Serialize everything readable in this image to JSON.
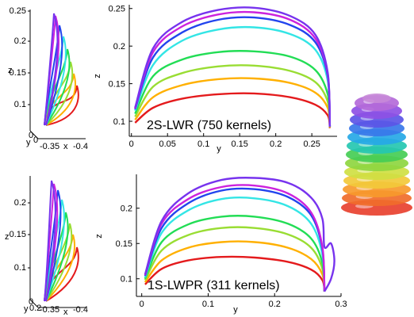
{
  "colors": [
    "#e41a1c",
    "#ffb000",
    "#99dd33",
    "#22dd55",
    "#33e5e5",
    "#2244ee",
    "#cc22dd",
    "#7733ee"
  ],
  "chart_data": [
    {
      "id": "top-main",
      "type": "line",
      "annotation": "2S-LWR (750 kernels)",
      "xlabel": "y",
      "ylabel": "z",
      "xlim": [
        -0.003,
        0.285
      ],
      "ylim": [
        0.08,
        0.255
      ],
      "xticks": [
        "0",
        "0.05",
        "0.1",
        "0.15",
        "0.2",
        "0.25"
      ],
      "xtick_values": [
        0,
        0.05,
        0.1,
        0.15,
        0.2,
        0.25
      ],
      "yticks": [
        "0.1",
        "0.15",
        "0.2",
        "0.25"
      ],
      "ytick_values": [
        0.1,
        0.15,
        0.2,
        0.25
      ],
      "series": [
        {
          "x": [
            0.005,
            0.03,
            0.07,
            0.12,
            0.17,
            0.22,
            0.255,
            0.272,
            0.275
          ],
          "y": [
            0.098,
            0.118,
            0.13,
            0.136,
            0.137,
            0.132,
            0.122,
            0.108,
            0.091
          ]
        },
        {
          "x": [
            0.005,
            0.03,
            0.07,
            0.12,
            0.17,
            0.22,
            0.255,
            0.272,
            0.275
          ],
          "y": [
            0.102,
            0.132,
            0.148,
            0.156,
            0.157,
            0.151,
            0.138,
            0.118,
            0.092
          ]
        },
        {
          "x": [
            0.005,
            0.03,
            0.07,
            0.12,
            0.17,
            0.22,
            0.255,
            0.272,
            0.275
          ],
          "y": [
            0.106,
            0.146,
            0.164,
            0.173,
            0.174,
            0.167,
            0.152,
            0.126,
            0.092
          ]
        },
        {
          "x": [
            0.005,
            0.03,
            0.07,
            0.12,
            0.17,
            0.22,
            0.255,
            0.272,
            0.275
          ],
          "y": [
            0.11,
            0.16,
            0.182,
            0.192,
            0.193,
            0.186,
            0.168,
            0.136,
            0.093
          ]
        },
        {
          "x": [
            0.005,
            0.03,
            0.07,
            0.12,
            0.17,
            0.22,
            0.255,
            0.272,
            0.275
          ],
          "y": [
            0.114,
            0.175,
            0.207,
            0.222,
            0.225,
            0.216,
            0.195,
            0.154,
            0.093
          ]
        },
        {
          "x": [
            0.005,
            0.03,
            0.07,
            0.12,
            0.17,
            0.22,
            0.255,
            0.272,
            0.275
          ],
          "y": [
            0.116,
            0.185,
            0.218,
            0.235,
            0.238,
            0.228,
            0.205,
            0.16,
            0.093
          ]
        },
        {
          "x": [
            0.005,
            0.03,
            0.07,
            0.12,
            0.17,
            0.22,
            0.255,
            0.272,
            0.275
          ],
          "y": [
            0.117,
            0.192,
            0.226,
            0.242,
            0.245,
            0.235,
            0.21,
            0.163,
            0.093
          ]
        },
        {
          "x": [
            0.005,
            0.03,
            0.07,
            0.12,
            0.17,
            0.22,
            0.255,
            0.272,
            0.275
          ],
          "y": [
            0.118,
            0.197,
            0.232,
            0.248,
            0.251,
            0.24,
            0.215,
            0.165,
            0.093
          ]
        }
      ]
    },
    {
      "id": "bottom-main",
      "type": "line",
      "annotation": "1S-LWPR (311 kernels)",
      "xlabel": "y",
      "ylabel": "z",
      "xlim": [
        -0.008,
        0.3
      ],
      "ylim": [
        0.075,
        0.248
      ],
      "xticks": [
        "0",
        "0.1",
        "0.2",
        "0.3"
      ],
      "xtick_values": [
        0,
        0.1,
        0.2,
        0.3
      ],
      "yticks": [
        "0.1",
        "0.15",
        "0.2"
      ],
      "ytick_values": [
        0.1,
        0.15,
        0.2
      ],
      "series": [
        {
          "x": [
            0.005,
            0.03,
            0.07,
            0.12,
            0.17,
            0.22,
            0.255,
            0.272,
            0.275
          ],
          "y": [
            0.092,
            0.114,
            0.126,
            0.131,
            0.13,
            0.124,
            0.113,
            0.098,
            0.082
          ]
        },
        {
          "x": [
            0.005,
            0.03,
            0.07,
            0.12,
            0.17,
            0.22,
            0.255,
            0.272,
            0.275
          ],
          "y": [
            0.095,
            0.126,
            0.144,
            0.152,
            0.152,
            0.144,
            0.128,
            0.106,
            0.082
          ]
        },
        {
          "x": [
            0.005,
            0.03,
            0.07,
            0.12,
            0.17,
            0.22,
            0.255,
            0.272,
            0.275
          ],
          "y": [
            0.098,
            0.14,
            0.162,
            0.172,
            0.172,
            0.163,
            0.144,
            0.114,
            0.082
          ]
        },
        {
          "x": [
            0.005,
            0.03,
            0.07,
            0.12,
            0.17,
            0.22,
            0.255,
            0.272,
            0.275
          ],
          "y": [
            0.1,
            0.152,
            0.177,
            0.188,
            0.188,
            0.178,
            0.157,
            0.122,
            0.082
          ]
        },
        {
          "x": [
            0.005,
            0.03,
            0.07,
            0.12,
            0.17,
            0.22,
            0.255,
            0.272,
            0.275
          ],
          "y": [
            0.102,
            0.165,
            0.197,
            0.213,
            0.214,
            0.203,
            0.178,
            0.134,
            0.082
          ]
        },
        {
          "x": [
            0.005,
            0.03,
            0.07,
            0.12,
            0.17,
            0.22,
            0.255,
            0.272,
            0.275
          ],
          "y": [
            0.104,
            0.172,
            0.207,
            0.225,
            0.227,
            0.216,
            0.19,
            0.142,
            0.082
          ]
        },
        {
          "x": [
            0.005,
            0.03,
            0.07,
            0.12,
            0.17,
            0.22,
            0.255,
            0.272,
            0.275
          ],
          "y": [
            0.105,
            0.178,
            0.213,
            0.23,
            0.232,
            0.221,
            0.194,
            0.145,
            0.082
          ]
        },
        {
          "x": [
            0.005,
            0.03,
            0.07,
            0.12,
            0.17,
            0.22,
            0.255,
            0.272,
            0.275,
            0.285,
            0.29,
            0.285,
            0.275
          ],
          "y": [
            0.106,
            0.182,
            0.221,
            0.24,
            0.243,
            0.236,
            0.215,
            0.185,
            0.145,
            0.15,
            0.125,
            0.1,
            0.082
          ]
        }
      ]
    }
  ],
  "insets": [
    {
      "id": "top-3d",
      "ylabel": "z",
      "xlabel": "x",
      "yticks": [
        "0.1",
        "0.15",
        "0.2",
        "0.25"
      ],
      "xticks": [
        "-0.35",
        "-0.4"
      ],
      "side_labels": [
        "0",
        "y",
        "0"
      ]
    },
    {
      "id": "bottom-3d",
      "ylabel": "z",
      "xlabel": "x",
      "yticks": [
        "0.1",
        "0.15",
        "0.2"
      ],
      "xticks": [
        "-0.35",
        "-0.4"
      ],
      "side_labels": [
        "0",
        "0.2",
        "y"
      ]
    }
  ]
}
